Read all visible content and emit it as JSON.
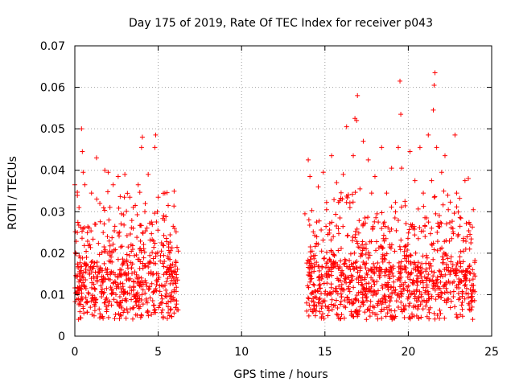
{
  "chart_data": {
    "type": "scatter",
    "title": "Day 175 of 2019, Rate Of TEC Index for receiver p043",
    "xlabel": "GPS time / hours",
    "ylabel": "ROTI / TECUs",
    "xlim": [
      0,
      25
    ],
    "ylim": [
      0,
      0.07
    ],
    "xticks": [
      0,
      5,
      10,
      15,
      20,
      25
    ],
    "xtick_labels": [
      "0",
      "5",
      "10",
      "15",
      "20",
      "25"
    ],
    "yticks": [
      0,
      0.01,
      0.02,
      0.03,
      0.04,
      0.05,
      0.06,
      0.07
    ],
    "ytick_labels": [
      "0",
      "0.01",
      "0.02",
      "0.03",
      "0.04",
      "0.05",
      "0.06",
      "0.07"
    ],
    "grid": true,
    "marker": "plus",
    "color": "#ff0000",
    "series": [
      {
        "name": "ROTI",
        "points": [
          [
            0.0,
            0.0365
          ],
          [
            0.1,
            0.0105
          ],
          [
            0.15,
            0.025
          ],
          [
            0.25,
            0.031
          ],
          [
            0.3,
            0.0155
          ],
          [
            0.35,
            0.0085
          ],
          [
            0.4,
            0.05
          ],
          [
            0.45,
            0.0445
          ],
          [
            0.5,
            0.0395
          ],
          [
            0.55,
            0.012
          ],
          [
            0.6,
            0.0365
          ],
          [
            0.7,
            0.019
          ],
          [
            0.8,
            0.0105
          ],
          [
            0.9,
            0.022
          ],
          [
            1.0,
            0.0345
          ],
          [
            1.1,
            0.0085
          ],
          [
            1.2,
            0.027
          ],
          [
            1.3,
            0.043
          ],
          [
            1.4,
            0.0155
          ],
          [
            1.5,
            0.032
          ],
          [
            1.6,
            0.0095
          ],
          [
            1.7,
            0.025
          ],
          [
            1.8,
            0.04
          ],
          [
            1.9,
            0.0115
          ],
          [
            2.0,
            0.0395
          ],
          [
            2.1,
            0.0205
          ],
          [
            2.2,
            0.0075
          ],
          [
            2.3,
            0.0365
          ],
          [
            2.4,
            0.0265
          ],
          [
            2.5,
            0.012
          ],
          [
            2.6,
            0.0385
          ],
          [
            2.7,
            0.0095
          ],
          [
            2.8,
            0.0295
          ],
          [
            2.9,
            0.0175
          ],
          [
            3.0,
            0.039
          ],
          [
            3.1,
            0.0085
          ],
          [
            3.2,
            0.0215
          ],
          [
            3.3,
            0.0335
          ],
          [
            3.4,
            0.011
          ],
          [
            3.5,
            0.026
          ],
          [
            3.6,
            0.0155
          ],
          [
            3.7,
            0.0075
          ],
          [
            3.8,
            0.0365
          ],
          [
            3.9,
            0.021
          ],
          [
            4.0,
            0.0455
          ],
          [
            4.05,
            0.048
          ],
          [
            4.1,
            0.0125
          ],
          [
            4.2,
            0.03
          ],
          [
            4.3,
            0.0085
          ],
          [
            4.4,
            0.039
          ],
          [
            4.5,
            0.018
          ],
          [
            4.6,
            0.0275
          ],
          [
            4.7,
            0.0105
          ],
          [
            4.8,
            0.0455
          ],
          [
            4.85,
            0.0485
          ],
          [
            4.9,
            0.0135
          ],
          [
            5.0,
            0.0335
          ],
          [
            5.1,
            0.0075
          ],
          [
            5.2,
            0.0225
          ],
          [
            5.3,
            0.012
          ],
          [
            5.4,
            0.0345
          ],
          [
            5.5,
            0.0095
          ],
          [
            5.6,
            0.0315
          ],
          [
            5.7,
            0.0185
          ],
          [
            5.8,
            0.0105
          ],
          [
            5.9,
            0.0265
          ],
          [
            6.0,
            0.0135
          ],
          [
            6.1,
            0.0085
          ],
          [
            6.2,
            0.0205
          ],
          [
            13.8,
            0.0295
          ],
          [
            13.9,
            0.008
          ],
          [
            14.0,
            0.0425
          ],
          [
            14.05,
            0.018
          ],
          [
            14.1,
            0.0385
          ],
          [
            14.3,
            0.0125
          ],
          [
            14.4,
            0.0095
          ],
          [
            14.5,
            0.0275
          ],
          [
            14.6,
            0.036
          ],
          [
            14.7,
            0.0115
          ],
          [
            14.8,
            0.0205
          ],
          [
            14.9,
            0.0395
          ],
          [
            15.0,
            0.0085
          ],
          [
            15.1,
            0.0305
          ],
          [
            15.2,
            0.0165
          ],
          [
            15.3,
            0.0105
          ],
          [
            15.4,
            0.0435
          ],
          [
            15.5,
            0.024
          ],
          [
            15.6,
            0.0075
          ],
          [
            15.7,
            0.037
          ],
          [
            15.8,
            0.0135
          ],
          [
            15.9,
            0.0285
          ],
          [
            16.0,
            0.0095
          ],
          [
            16.1,
            0.039
          ],
          [
            16.2,
            0.0185
          ],
          [
            16.3,
            0.0505
          ],
          [
            16.4,
            0.0115
          ],
          [
            16.5,
            0.031
          ],
          [
            16.6,
            0.0085
          ],
          [
            16.7,
            0.0435
          ],
          [
            16.8,
            0.0525
          ],
          [
            16.9,
            0.052
          ],
          [
            16.95,
            0.058
          ],
          [
            17.0,
            0.0215
          ],
          [
            17.1,
            0.0355
          ],
          [
            17.2,
            0.0125
          ],
          [
            17.3,
            0.047
          ],
          [
            17.4,
            0.0285
          ],
          [
            17.5,
            0.0095
          ],
          [
            17.6,
            0.0425
          ],
          [
            17.7,
            0.0195
          ],
          [
            17.8,
            0.0345
          ],
          [
            17.9,
            0.0105
          ],
          [
            18.0,
            0.0385
          ],
          [
            18.1,
            0.0165
          ],
          [
            18.2,
            0.0275
          ],
          [
            18.3,
            0.0085
          ],
          [
            18.4,
            0.0455
          ],
          [
            18.5,
            0.0235
          ],
          [
            18.6,
            0.0125
          ],
          [
            18.7,
            0.0345
          ],
          [
            18.8,
            0.0095
          ],
          [
            18.9,
            0.0215
          ],
          [
            19.0,
            0.0405
          ],
          [
            19.1,
            0.0145
          ],
          [
            19.2,
            0.0285
          ],
          [
            19.3,
            0.0085
          ],
          [
            19.4,
            0.0455
          ],
          [
            19.5,
            0.0615
          ],
          [
            19.55,
            0.0535
          ],
          [
            19.6,
            0.0405
          ],
          [
            19.7,
            0.0115
          ],
          [
            19.8,
            0.0325
          ],
          [
            19.9,
            0.0195
          ],
          [
            20.0,
            0.0095
          ],
          [
            20.1,
            0.0445
          ],
          [
            20.2,
            0.0265
          ],
          [
            20.3,
            0.0135
          ],
          [
            20.4,
            0.0375
          ],
          [
            20.5,
            0.0085
          ],
          [
            20.6,
            0.0235
          ],
          [
            20.7,
            0.0455
          ],
          [
            20.8,
            0.0155
          ],
          [
            20.9,
            0.0345
          ],
          [
            21.0,
            0.0105
          ],
          [
            21.1,
            0.0285
          ],
          [
            21.2,
            0.0485
          ],
          [
            21.3,
            0.0175
          ],
          [
            21.4,
            0.0375
          ],
          [
            21.5,
            0.0545
          ],
          [
            21.55,
            0.0605
          ],
          [
            21.6,
            0.0635
          ],
          [
            21.7,
            0.0455
          ],
          [
            21.8,
            0.0265
          ],
          [
            21.9,
            0.0115
          ],
          [
            22.0,
            0.0395
          ],
          [
            22.1,
            0.0185
          ],
          [
            22.2,
            0.0435
          ],
          [
            22.3,
            0.0085
          ],
          [
            22.4,
            0.0305
          ],
          [
            22.5,
            0.0155
          ],
          [
            22.6,
            0.0235
          ],
          [
            22.7,
            0.0095
          ],
          [
            22.8,
            0.0485
          ],
          [
            22.9,
            0.0345
          ],
          [
            23.0,
            0.0125
          ],
          [
            23.1,
            0.0265
          ],
          [
            23.2,
            0.0075
          ],
          [
            23.3,
            0.0205
          ],
          [
            23.4,
            0.0375
          ],
          [
            23.5,
            0.0115
          ],
          [
            23.6,
            0.038
          ],
          [
            23.7,
            0.0245
          ],
          [
            23.8,
            0.0085
          ],
          [
            23.9,
            0.0305
          ],
          [
            24.0,
            0.0145
          ]
        ]
      }
    ]
  }
}
